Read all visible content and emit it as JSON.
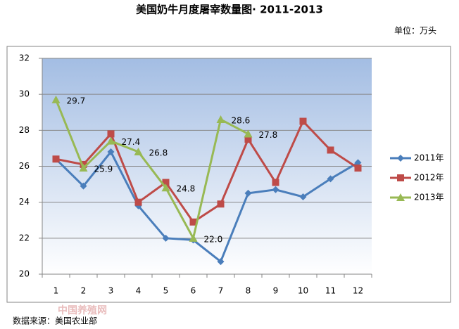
{
  "chart_data": {
    "type": "line",
    "title": "美国奶牛月度屠宰数量图· 2011-2013",
    "unit": "单位：万头",
    "source": "数据来源：美国农业部",
    "watermark": "中国养殖网",
    "categories": [
      "1",
      "2",
      "3",
      "4",
      "5",
      "6",
      "7",
      "8",
      "9",
      "10",
      "11",
      "12"
    ],
    "ylim": [
      20,
      32
    ],
    "yticks": [
      20,
      22,
      24,
      26,
      28,
      30,
      32
    ],
    "grid": true,
    "legend": "right",
    "series": [
      {
        "name": "2011年",
        "color": "#4a7ebb",
        "marker": "diamond",
        "values": [
          26.4,
          24.9,
          26.8,
          23.8,
          22.0,
          21.9,
          20.7,
          24.5,
          24.7,
          24.3,
          25.3,
          26.2
        ]
      },
      {
        "name": "2012年",
        "color": "#be4b48",
        "marker": "square",
        "values": [
          26.4,
          26.1,
          27.8,
          24.0,
          25.1,
          22.9,
          23.9,
          27.5,
          25.1,
          28.5,
          26.9,
          25.9
        ]
      },
      {
        "name": "2013年",
        "color": "#98b954",
        "marker": "triangle",
        "values": [
          29.7,
          25.9,
          27.4,
          26.8,
          24.8,
          22.0,
          28.6,
          27.8,
          null,
          null,
          null,
          null
        ],
        "value_labels": [
          "29.7",
          "25.9",
          "27.4",
          "26.8",
          "24.8",
          "22.0",
          "28.6",
          "27.8",
          null,
          null,
          null,
          null
        ]
      }
    ]
  }
}
